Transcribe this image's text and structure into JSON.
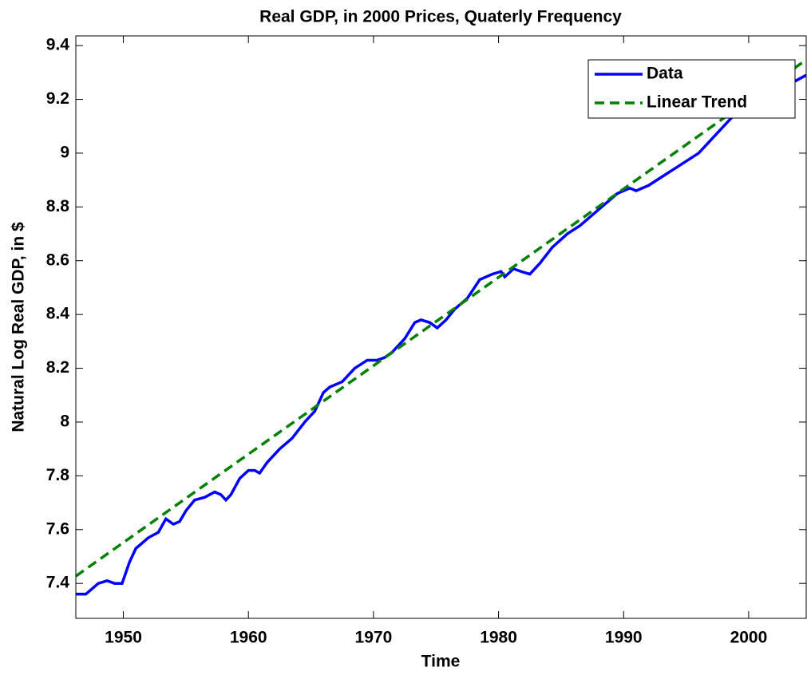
{
  "chart_data": {
    "type": "line",
    "title": "Real GDP, in 2000 Prices, Quaterly Frequency",
    "xlabel": "Time",
    "ylabel": "Natural Log Real GDP, in $",
    "xlim": [
      1946.2,
      2004.6
    ],
    "ylim": [
      7.27,
      9.436
    ],
    "xticks": [
      1950,
      1960,
      1970,
      1980,
      1990,
      2000
    ],
    "yticks": [
      7.4,
      7.6,
      7.8,
      8,
      8.2,
      8.4,
      8.6,
      8.8,
      9,
      9.2,
      9.4
    ],
    "legend": "top-right",
    "series": [
      {
        "name": "Data",
        "color": "#0000ff",
        "dash": false,
        "x": [
          1946.2,
          1947,
          1948,
          1948.7,
          1949.3,
          1949.9,
          1950.5,
          1951,
          1952,
          1952.8,
          1953.4,
          1954,
          1954.5,
          1955,
          1955.7,
          1956.5,
          1957.3,
          1957.8,
          1958.2,
          1958.6,
          1959.3,
          1960,
          1960.5,
          1960.9,
          1961.5,
          1962.5,
          1963.5,
          1964.5,
          1965.3,
          1966,
          1966.5,
          1967.5,
          1968.5,
          1969.5,
          1970.3,
          1970.9,
          1971.5,
          1972.5,
          1973.3,
          1973.8,
          1974.5,
          1975.1,
          1975.8,
          1976.5,
          1977.5,
          1978.5,
          1979.5,
          1980.2,
          1980.5,
          1981.2,
          1981.8,
          1982.5,
          1983.3,
          1984.3,
          1985.5,
          1986.5,
          1987.5,
          1988.5,
          1989.5,
          1990.5,
          1991,
          1992,
          1993,
          1994,
          1995,
          1996,
          1997,
          1998,
          1999,
          2000.3,
          2001,
          2002,
          2003,
          2004.6
        ],
        "values": [
          7.36,
          7.36,
          7.4,
          7.41,
          7.4,
          7.4,
          7.48,
          7.53,
          7.57,
          7.59,
          7.64,
          7.62,
          7.63,
          7.67,
          7.71,
          7.72,
          7.74,
          7.73,
          7.71,
          7.73,
          7.79,
          7.82,
          7.82,
          7.81,
          7.85,
          7.9,
          7.94,
          8.0,
          8.04,
          8.11,
          8.13,
          8.15,
          8.2,
          8.23,
          8.23,
          8.24,
          8.26,
          8.31,
          8.37,
          8.38,
          8.37,
          8.35,
          8.38,
          8.42,
          8.46,
          8.53,
          8.55,
          8.56,
          8.54,
          8.57,
          8.56,
          8.55,
          8.59,
          8.65,
          8.7,
          8.73,
          8.77,
          8.81,
          8.85,
          8.87,
          8.86,
          8.88,
          8.91,
          8.94,
          8.97,
          9.0,
          9.05,
          9.1,
          9.15,
          9.19,
          9.2,
          9.22,
          9.25,
          9.29
        ]
      },
      {
        "name": "Linear Trend",
        "color": "#008000",
        "dash": true,
        "x": [
          1946.2,
          2004.6
        ],
        "values": [
          7.427,
          9.347
        ]
      }
    ]
  }
}
